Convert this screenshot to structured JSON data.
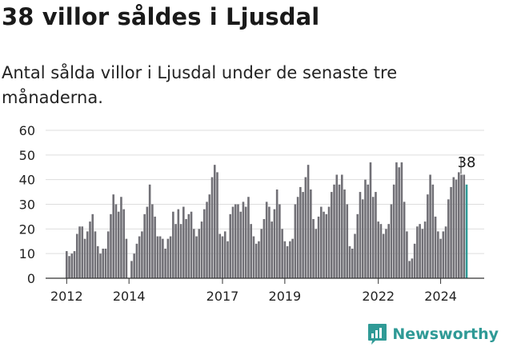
{
  "header": {
    "title": "38 villor såldes i Ljusdal",
    "subtitle": "Antal sålda villor i Ljusdal under de senaste tre månaderna."
  },
  "brand": {
    "name": "Newsworthy",
    "logo_icon": "newsworthy-logo-icon",
    "color": "#2f9a96"
  },
  "colors": {
    "bar": "#717076",
    "highlight": "#2f9a96",
    "grid": "#dddddd",
    "text": "#222222"
  },
  "chart_data": {
    "type": "bar",
    "title": "",
    "xlabel": "",
    "ylabel": "",
    "ylim": [
      0,
      60
    ],
    "yticks": [
      0,
      10,
      20,
      30,
      40,
      50,
      60
    ],
    "x_tick_labels": [
      "2012",
      "2014",
      "2017",
      "2019",
      "2022",
      "2024"
    ],
    "grid": true,
    "highlight_label": "38",
    "series": [
      {
        "values": [
          11,
          9,
          10,
          11,
          18,
          21,
          21,
          16,
          19,
          23,
          26,
          19,
          13,
          10,
          12,
          12,
          19,
          26,
          34,
          30,
          27,
          33,
          28,
          16,
          0,
          7,
          10,
          14,
          17,
          19,
          26,
          29,
          38,
          30,
          25,
          17,
          17,
          16,
          12,
          16,
          17,
          27,
          22,
          28,
          22,
          29,
          24,
          26,
          27,
          20,
          17,
          20,
          23,
          28,
          31,
          34,
          41,
          46,
          43,
          18,
          17,
          19,
          15,
          26,
          29,
          30,
          30,
          27,
          31,
          29,
          33,
          22,
          17,
          14,
          15,
          20,
          24,
          31,
          29,
          23,
          28,
          36,
          30,
          20,
          15,
          13,
          15,
          16,
          30,
          33,
          37,
          35,
          41,
          46,
          36,
          24,
          20,
          25,
          29,
          27,
          26,
          29,
          35,
          38,
          42,
          38,
          42,
          36,
          30,
          13,
          12,
          18,
          26,
          35,
          32,
          40,
          38,
          47,
          33,
          35,
          23,
          22,
          18,
          20,
          22,
          30,
          38,
          47,
          45,
          47,
          31,
          19,
          7,
          8,
          14,
          21,
          22,
          20,
          23,
          34,
          42,
          38,
          25,
          19,
          16,
          19,
          21,
          32,
          37,
          41,
          40,
          43,
          42,
          42,
          38
        ]
      }
    ]
  }
}
